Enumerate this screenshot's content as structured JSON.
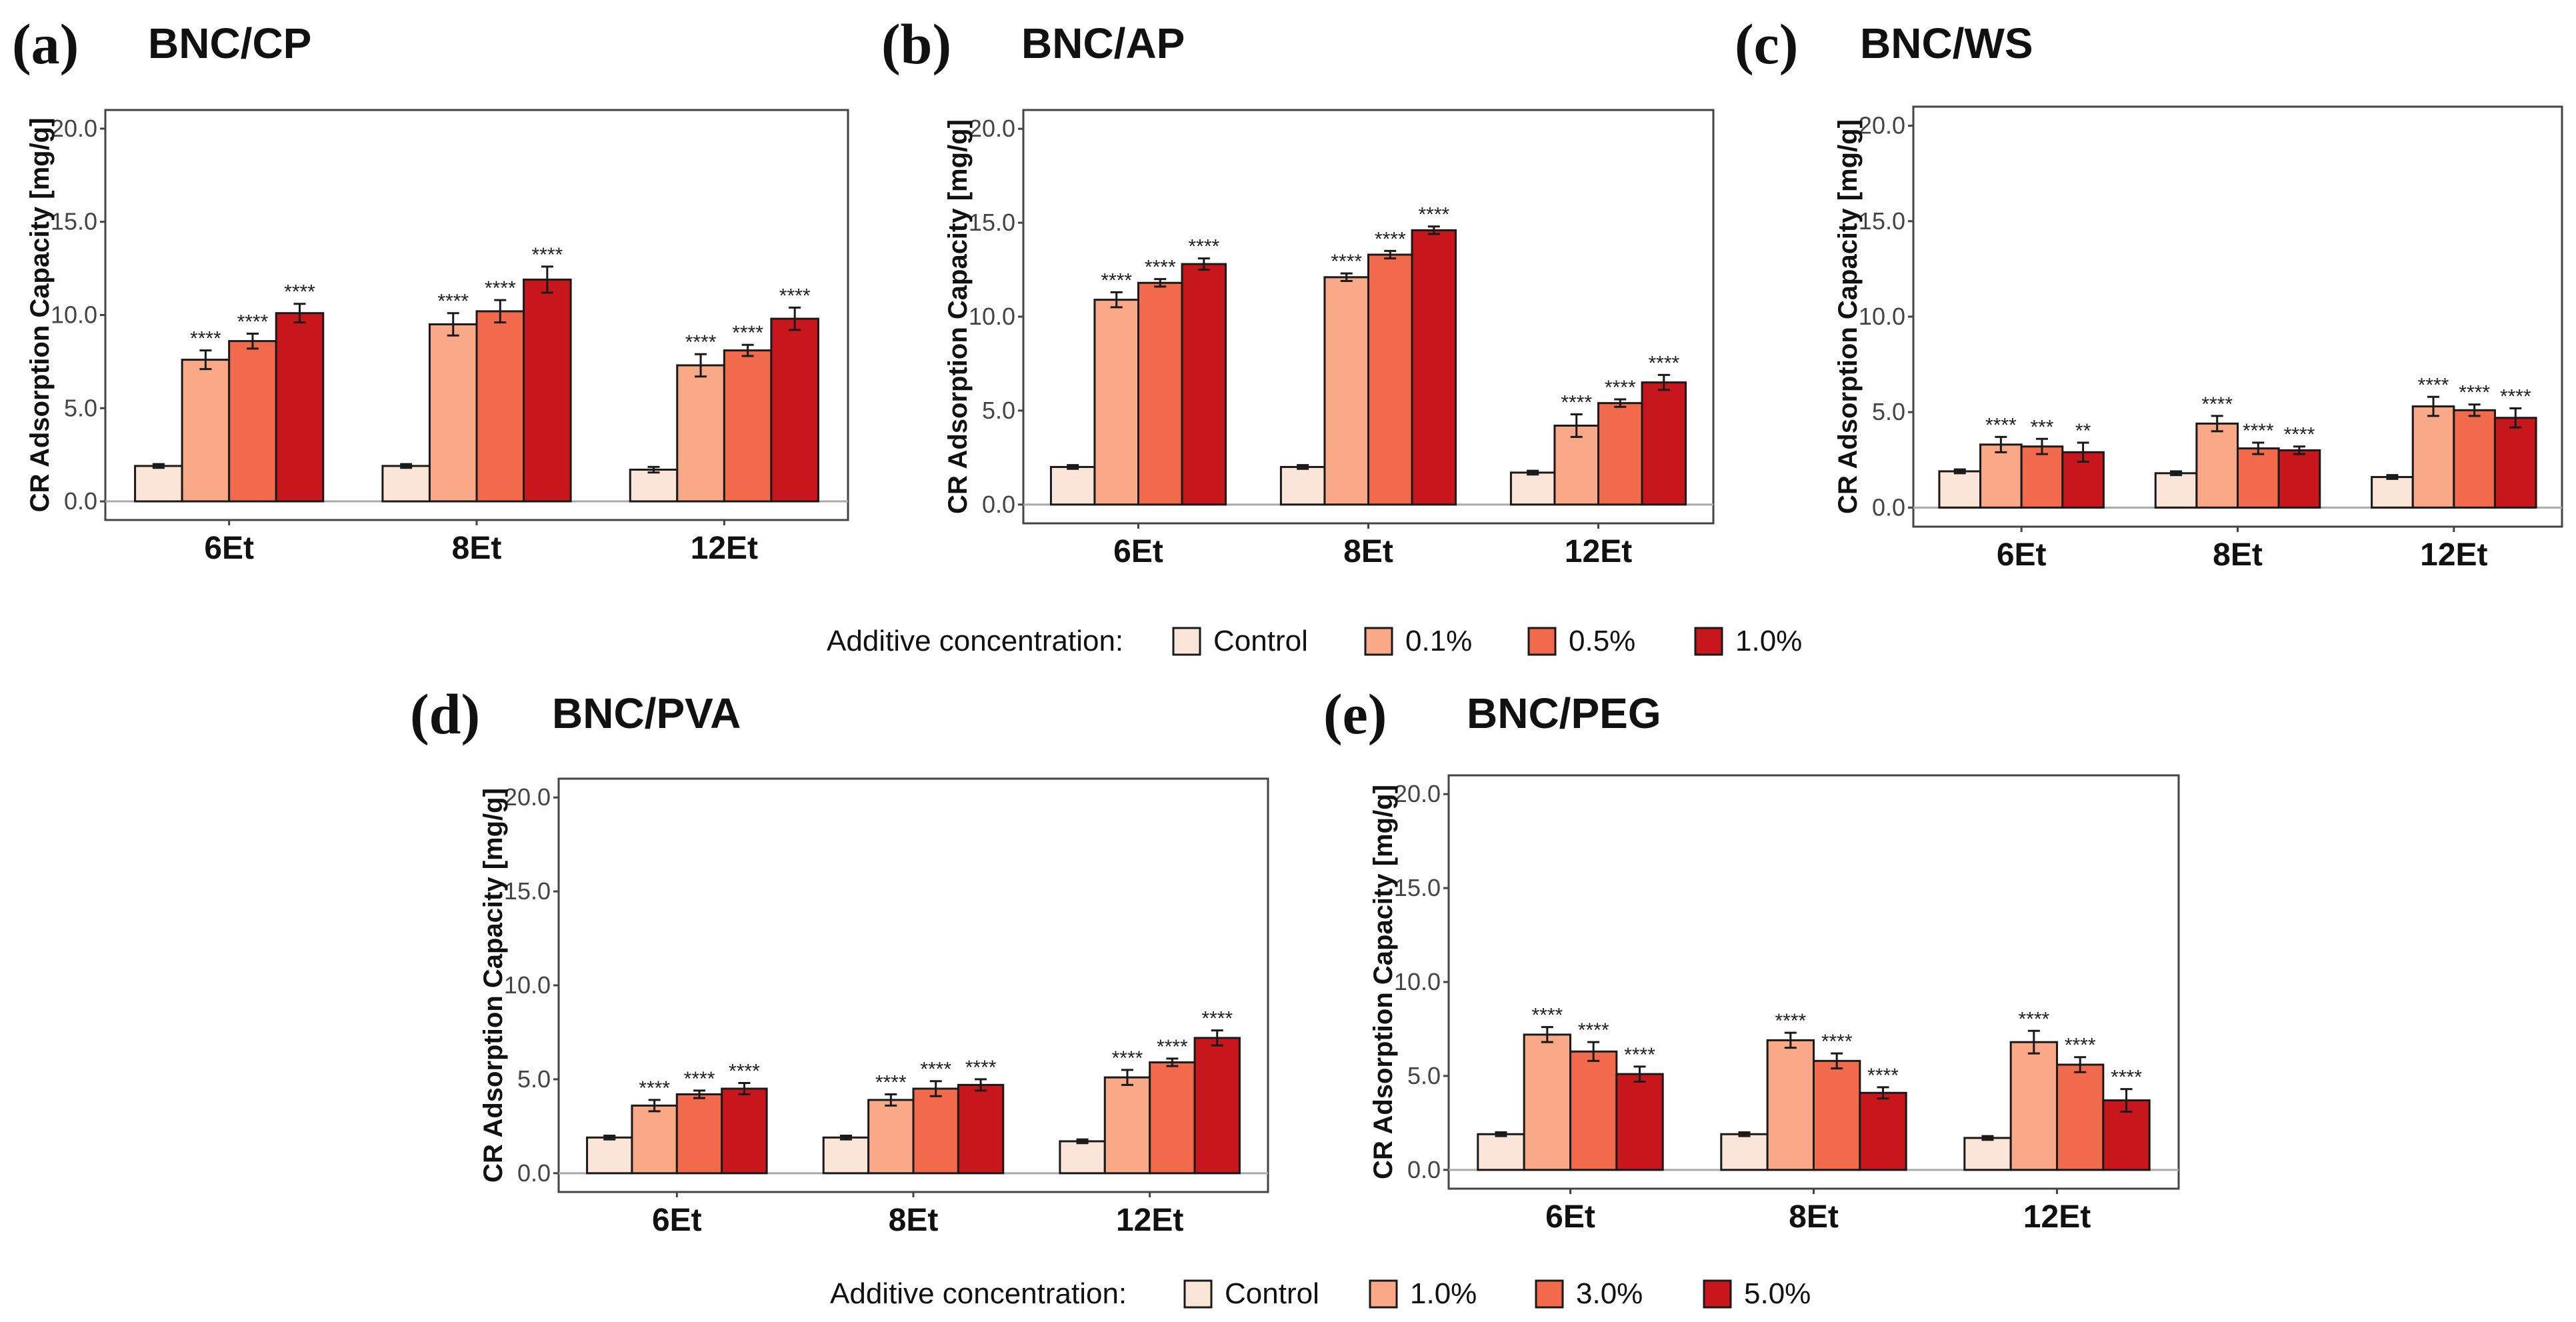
{
  "colors": {
    "control": "#fbe4d8",
    "c1": "#f9a888",
    "c2": "#f26a4c",
    "c3": "#c8161d",
    "bar_edge": "#1a1a1a",
    "frame": "#444444",
    "zero_line": "#aaaaaa"
  },
  "legends": [
    {
      "title": "Additive concentration:",
      "labels": [
        "Control",
        "0.1%",
        "0.5%",
        "1.0%"
      ]
    },
    {
      "title": "Additive concentration:",
      "labels": [
        "Control",
        "1.0%",
        "3.0%",
        "5.0%"
      ]
    }
  ],
  "chart_data": [
    {
      "panel": "(a)",
      "title": "BNC/CP",
      "type": "bar",
      "ylabel": "CR Adsorption Capacity [mg/g]",
      "ylim": [
        -1,
        21
      ],
      "yticks": [
        "0.0",
        "5.0",
        "10.0",
        "15.0",
        "20.0"
      ],
      "categories": [
        "6Et",
        "8Et",
        "12Et"
      ],
      "series": [
        {
          "name": "Control",
          "values": [
            1.9,
            1.9,
            1.7
          ],
          "errors": [
            0.1,
            0.1,
            0.15
          ],
          "sig": [
            "",
            "",
            ""
          ]
        },
        {
          "name": "0.1%",
          "values": [
            7.6,
            9.5,
            7.3
          ],
          "errors": [
            0.5,
            0.6,
            0.6
          ],
          "sig": [
            "****",
            "****",
            "****"
          ]
        },
        {
          "name": "0.5%",
          "values": [
            8.6,
            10.2,
            8.1
          ],
          "errors": [
            0.4,
            0.6,
            0.3
          ],
          "sig": [
            "****",
            "****",
            "****"
          ]
        },
        {
          "name": "1.0%",
          "values": [
            10.1,
            11.9,
            9.8
          ],
          "errors": [
            0.5,
            0.7,
            0.6
          ],
          "sig": [
            "****",
            "****",
            "****"
          ]
        }
      ]
    },
    {
      "panel": "(b)",
      "title": "BNC/AP",
      "type": "bar",
      "ylabel": "CR Adsorption Capacity [mg/g]",
      "ylim": [
        -1,
        21
      ],
      "yticks": [
        "0.0",
        "5.0",
        "10.0",
        "15.0",
        "20.0"
      ],
      "categories": [
        "6Et",
        "8Et",
        "12Et"
      ],
      "series": [
        {
          "name": "Control",
          "values": [
            2.0,
            2.0,
            1.7
          ],
          "errors": [
            0.1,
            0.1,
            0.1
          ],
          "sig": [
            "",
            "",
            ""
          ]
        },
        {
          "name": "0.1%",
          "values": [
            10.9,
            12.1,
            4.2
          ],
          "errors": [
            0.4,
            0.2,
            0.6
          ],
          "sig": [
            "****",
            "****",
            "****"
          ]
        },
        {
          "name": "0.5%",
          "values": [
            11.8,
            13.3,
            5.4
          ],
          "errors": [
            0.2,
            0.2,
            0.2
          ],
          "sig": [
            "****",
            "****",
            "****"
          ]
        },
        {
          "name": "1.0%",
          "values": [
            12.8,
            14.6,
            6.5
          ],
          "errors": [
            0.3,
            0.2,
            0.4
          ],
          "sig": [
            "****",
            "****",
            "****"
          ]
        }
      ]
    },
    {
      "panel": "(c)",
      "title": "BNC/WS",
      "type": "bar",
      "ylabel": "CR Adsorption Capacity [mg/g]",
      "ylim": [
        -1,
        21
      ],
      "yticks": [
        "0.0",
        "5.0",
        "10.0",
        "15.0",
        "20.0"
      ],
      "categories": [
        "6Et",
        "8Et",
        "12Et"
      ],
      "series": [
        {
          "name": "Control",
          "values": [
            1.9,
            1.8,
            1.6
          ],
          "errors": [
            0.1,
            0.1,
            0.1
          ],
          "sig": [
            "",
            "",
            ""
          ]
        },
        {
          "name": "0.1%",
          "values": [
            3.3,
            4.4,
            5.3
          ],
          "errors": [
            0.4,
            0.4,
            0.5
          ],
          "sig": [
            "****",
            "****",
            "****"
          ]
        },
        {
          "name": "0.5%",
          "values": [
            3.2,
            3.1,
            5.1
          ],
          "errors": [
            0.4,
            0.3,
            0.3
          ],
          "sig": [
            "***",
            "****",
            "****"
          ]
        },
        {
          "name": "1.0%",
          "values": [
            2.9,
            3.0,
            4.7
          ],
          "errors": [
            0.5,
            0.2,
            0.5
          ],
          "sig": [
            "**",
            "****",
            "****"
          ]
        }
      ]
    },
    {
      "panel": "(d)",
      "title": "BNC/PVA",
      "type": "bar",
      "ylabel": "CR Adsorption Capacity [mg/g]",
      "ylim": [
        -1,
        21
      ],
      "yticks": [
        "0.0",
        "5.0",
        "10.0",
        "15.0",
        "20.0"
      ],
      "categories": [
        "6Et",
        "8Et",
        "12Et"
      ],
      "series": [
        {
          "name": "Control",
          "values": [
            1.9,
            1.9,
            1.7
          ],
          "errors": [
            0.1,
            0.1,
            0.1
          ],
          "sig": [
            "",
            "",
            ""
          ]
        },
        {
          "name": "1.0%",
          "values": [
            3.6,
            3.9,
            5.1
          ],
          "errors": [
            0.3,
            0.3,
            0.4
          ],
          "sig": [
            "****",
            "****",
            "****"
          ]
        },
        {
          "name": "3.0%",
          "values": [
            4.2,
            4.5,
            5.9
          ],
          "errors": [
            0.2,
            0.4,
            0.2
          ],
          "sig": [
            "****",
            "****",
            "****"
          ]
        },
        {
          "name": "5.0%",
          "values": [
            4.5,
            4.7,
            7.2
          ],
          "errors": [
            0.3,
            0.3,
            0.4
          ],
          "sig": [
            "****",
            "****",
            "****"
          ]
        }
      ]
    },
    {
      "panel": "(e)",
      "title": "BNC/PEG",
      "type": "bar",
      "ylabel": "CR Adsorption Capacity [mg/g]",
      "ylim": [
        -1,
        21
      ],
      "yticks": [
        "0.0",
        "5.0",
        "10.0",
        "15.0",
        "20.0"
      ],
      "categories": [
        "6Et",
        "8Et",
        "12Et"
      ],
      "series": [
        {
          "name": "Control",
          "values": [
            1.9,
            1.9,
            1.7
          ],
          "errors": [
            0.1,
            0.1,
            0.1
          ],
          "sig": [
            "",
            "",
            ""
          ]
        },
        {
          "name": "1.0%",
          "values": [
            7.2,
            6.9,
            6.8
          ],
          "errors": [
            0.4,
            0.4,
            0.6
          ],
          "sig": [
            "****",
            "****",
            "****"
          ]
        },
        {
          "name": "3.0%",
          "values": [
            6.3,
            5.8,
            5.6
          ],
          "errors": [
            0.5,
            0.4,
            0.4
          ],
          "sig": [
            "****",
            "****",
            "****"
          ]
        },
        {
          "name": "5.0%",
          "values": [
            5.1,
            4.1,
            3.7
          ],
          "errors": [
            0.4,
            0.3,
            0.6
          ],
          "sig": [
            "****",
            "****",
            "****"
          ]
        }
      ]
    }
  ]
}
